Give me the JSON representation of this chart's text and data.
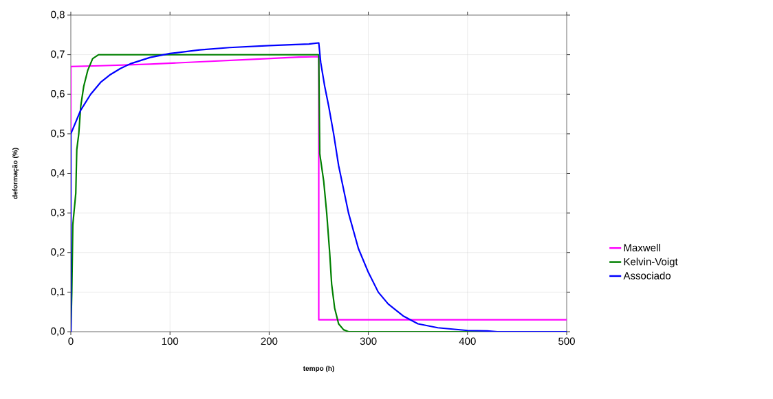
{
  "chart_data": {
    "type": "line",
    "xlabel": "tempo (h)",
    "ylabel": "deformação (%)",
    "xlim": [
      0,
      500
    ],
    "xticks": [
      0,
      100,
      200,
      300,
      400,
      500
    ],
    "ylim": [
      0,
      0.8
    ],
    "yticks": [
      {
        "value": 0,
        "label": "0,0"
      },
      {
        "value": 0.1,
        "label": "0,1"
      },
      {
        "value": 0.2,
        "label": "0,2"
      },
      {
        "value": 0.3,
        "label": "0,3"
      },
      {
        "value": 0.4,
        "label": "0,4"
      },
      {
        "value": 0.5,
        "label": "0,5"
      },
      {
        "value": 0.6,
        "label": "0,6"
      },
      {
        "value": 0.7,
        "label": "0,7"
      },
      {
        "value": 0.8,
        "label": "0,8"
      }
    ],
    "grid": true,
    "legend": "right",
    "marker": "none",
    "line_style": "solid",
    "series": [
      {
        "name": "Maxwell",
        "color": "#ff00ff",
        "x": [
          0,
          0,
          30,
          80,
          130,
          180,
          230,
          250,
          250,
          500
        ],
        "values": [
          0,
          0.67,
          0.672,
          0.676,
          0.682,
          0.688,
          0.694,
          0.695,
          0.03,
          0.03
        ]
      },
      {
        "name": "Kelvin-Voigt",
        "color": "#008000",
        "x": [
          0,
          1,
          2,
          5,
          6,
          8,
          10,
          13,
          17,
          22,
          28,
          250,
          251,
          255,
          258,
          261,
          263,
          266,
          270,
          275,
          280,
          500
        ],
        "values": [
          0,
          0.1,
          0.27,
          0.35,
          0.46,
          0.5,
          0.57,
          0.62,
          0.66,
          0.69,
          0.7,
          0.7,
          0.45,
          0.38,
          0.3,
          0.2,
          0.12,
          0.06,
          0.02,
          0.005,
          0,
          0
        ]
      },
      {
        "name": "Associado",
        "color": "#0000ff",
        "x": [
          0,
          0,
          5,
          10,
          20,
          30,
          40,
          50,
          60,
          80,
          100,
          130,
          160,
          200,
          240,
          250,
          252,
          256,
          260,
          265,
          270,
          275,
          280,
          290,
          300,
          310,
          320,
          335,
          350,
          370,
          400,
          420,
          430,
          500
        ],
        "values": [
          0,
          0.5,
          0.53,
          0.56,
          0.6,
          0.63,
          0.65,
          0.665,
          0.677,
          0.693,
          0.703,
          0.712,
          0.718,
          0.723,
          0.727,
          0.73,
          0.68,
          0.62,
          0.57,
          0.5,
          0.42,
          0.36,
          0.3,
          0.21,
          0.15,
          0.1,
          0.07,
          0.04,
          0.02,
          0.01,
          0.003,
          0.002,
          0,
          0
        ]
      }
    ]
  }
}
